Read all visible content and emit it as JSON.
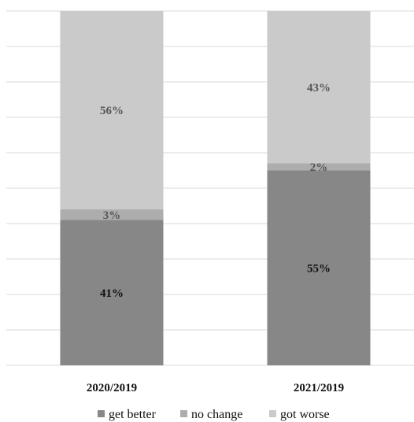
{
  "chart_data": {
    "type": "bar",
    "stacked": true,
    "normalized": true,
    "title": "",
    "xlabel": "",
    "ylabel": "",
    "ylim": [
      0,
      100
    ],
    "grid": true,
    "legend_position": "bottom",
    "categories": [
      "2020/2019",
      "2021/2019"
    ],
    "series": [
      {
        "name": "get better",
        "values": [
          41,
          55
        ],
        "labels": [
          "41%",
          "55%"
        ],
        "color": "#878787",
        "label_color": "#111111"
      },
      {
        "name": "no change",
        "values": [
          3,
          2
        ],
        "labels": [
          "3%",
          "2%"
        ],
        "color": "#adadad",
        "label_color": "#555555"
      },
      {
        "name": "got worse",
        "values": [
          56,
          43
        ],
        "labels": [
          "56%",
          "43%"
        ],
        "color": "#cacaca",
        "label_color": "#555555"
      }
    ]
  }
}
